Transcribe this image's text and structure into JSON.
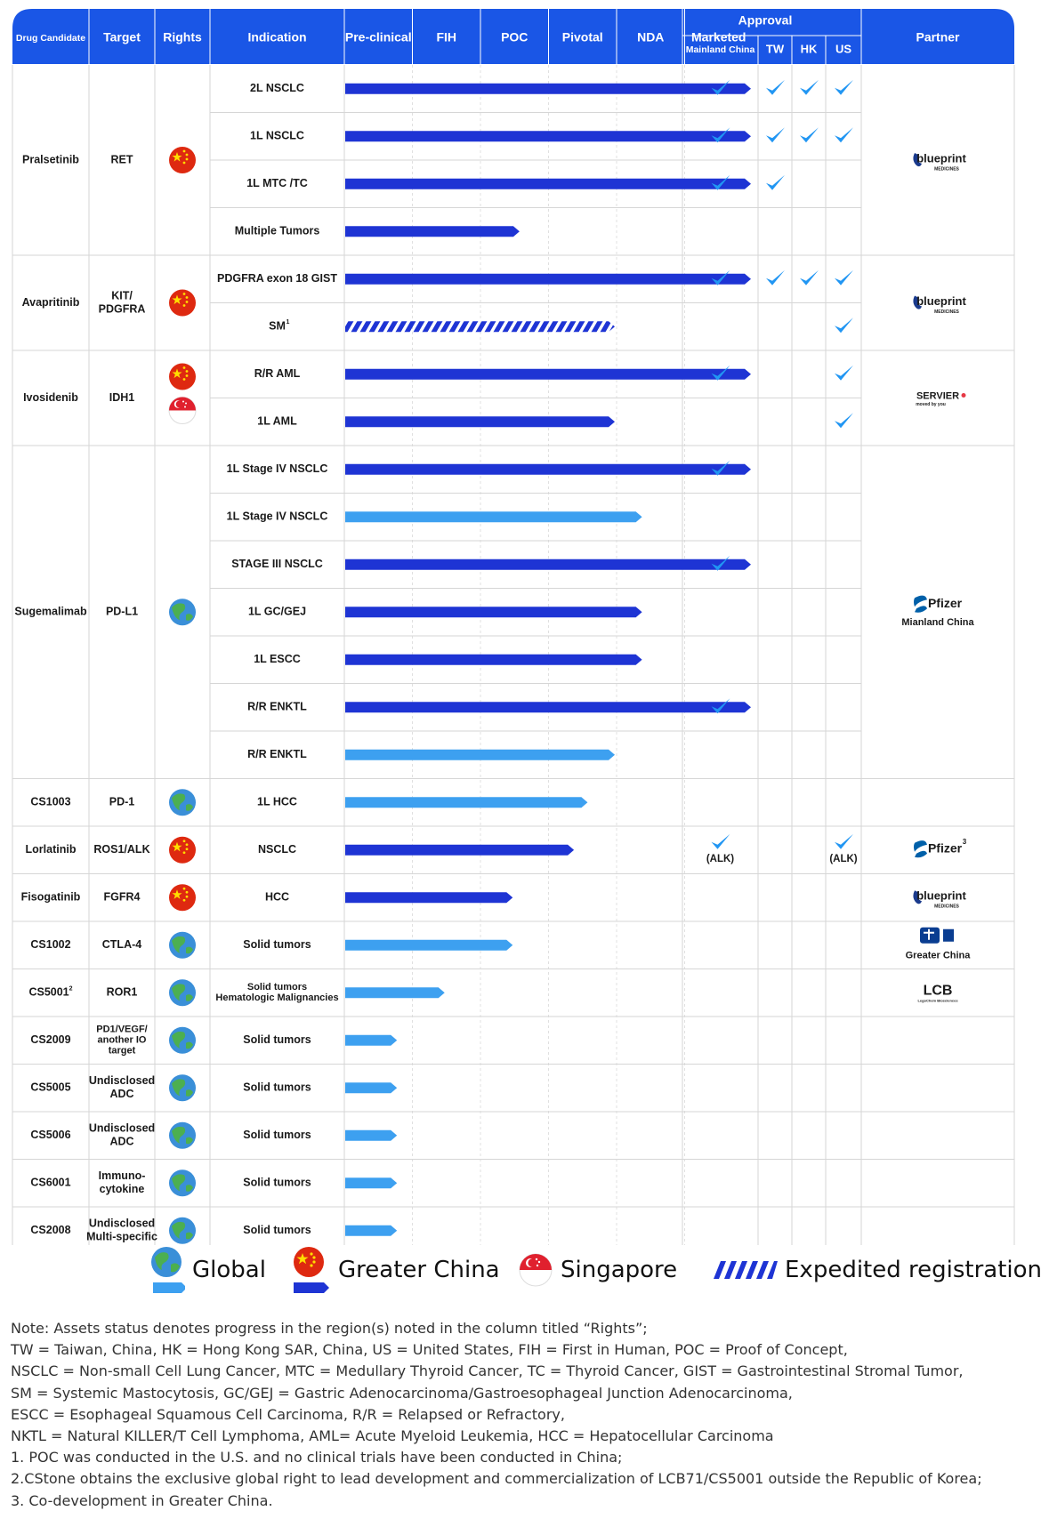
{
  "chart_data": {
    "type": "table",
    "header": {
      "drug": "Drug Candidate",
      "target": "Target",
      "rights": "Rights",
      "indication": "Indication",
      "stages": [
        "Pre-clinical",
        "FIH",
        "POC",
        "Pivotal",
        "NDA",
        "Marketed"
      ],
      "approval": "Approval",
      "regions": [
        "Mainland China",
        "TW",
        "HK",
        "US"
      ],
      "partner": "Partner"
    },
    "colors": {
      "header": "#1a56e6",
      "greater_china_bar": "#1e34d4",
      "global_bar": "#3da0f0",
      "check": "#2196f3",
      "china_flag": "#de2910",
      "singapore_flag": "#e0202e",
      "globe_ocean": "#3a8fd8",
      "globe_land": "#4caf50"
    },
    "drugs": [
      {
        "name": "Pralsetinib",
        "target": "RET",
        "rights": [
          "china"
        ],
        "partner": {
          "logo": "blueprint",
          "note": ""
        },
        "indications": [
          {
            "name": "2L NSCLC",
            "stage": 6.0,
            "bar": "greater_china",
            "approvals": [
              "",
              "",
              "",
              ""
            ]
          },
          {
            "name": "1L NSCLC",
            "stage": 6.0,
            "bar": "greater_china",
            "approvals": [
              "",
              "",
              "",
              ""
            ]
          },
          {
            "name": "1L MTC /TC",
            "stage": 6.0,
            "bar": "greater_china",
            "approvals": [
              "",
              "",
              null,
              null
            ]
          },
          {
            "name": "Multiple Tumors",
            "stage": 2.6,
            "bar": "greater_china",
            "approvals": [
              null,
              null,
              null,
              null
            ]
          }
        ]
      },
      {
        "name": "Avapritinib",
        "target": "KIT/\nPDGFRA",
        "rights": [
          "china"
        ],
        "partner": {
          "logo": "blueprint",
          "note": ""
        },
        "indications": [
          {
            "name": "PDGFRA exon 18 GIST",
            "stage": 6.0,
            "bar": "greater_china",
            "approvals": [
              "",
              "",
              "",
              ""
            ]
          },
          {
            "name": "SM",
            "sup": "1",
            "stage": 4.0,
            "bar": "expedited",
            "approvals": [
              null,
              null,
              null,
              ""
            ]
          }
        ]
      },
      {
        "name": "Ivosidenib",
        "target": "IDH1",
        "rights": [
          "china",
          "singapore"
        ],
        "partner": {
          "logo": "servier",
          "note": ""
        },
        "indications": [
          {
            "name": "R/R AML",
            "stage": 6.0,
            "bar": "greater_china",
            "approvals": [
              "",
              null,
              null,
              ""
            ]
          },
          {
            "name": "1L AML",
            "stage": 4.0,
            "bar": "greater_china",
            "approvals": [
              null,
              null,
              null,
              ""
            ]
          }
        ]
      },
      {
        "name": "Sugemalimab",
        "target": "PD-L1",
        "rights": [
          "global"
        ],
        "partner": {
          "logo": "pfizer",
          "note": "Mianland China"
        },
        "indications": [
          {
            "name": "1L Stage IV NSCLC",
            "stage": 6.0,
            "bar": "greater_china",
            "approvals": [
              "",
              null,
              null,
              null
            ]
          },
          {
            "name": "1L Stage IV NSCLC",
            "stage": 4.4,
            "bar": "global",
            "approvals": [
              null,
              null,
              null,
              null
            ]
          },
          {
            "name": "STAGE III NSCLC",
            "stage": 6.0,
            "bar": "greater_china",
            "approvals": [
              "",
              null,
              null,
              null
            ]
          },
          {
            "name": "1L GC/GEJ",
            "stage": 4.4,
            "bar": "greater_china",
            "approvals": [
              null,
              null,
              null,
              null
            ]
          },
          {
            "name": "1L ESCC",
            "stage": 4.4,
            "bar": "greater_china",
            "approvals": [
              null,
              null,
              null,
              null
            ]
          },
          {
            "name": "R/R ENKTL",
            "stage": 6.0,
            "bar": "greater_china",
            "approvals": [
              "",
              null,
              null,
              null
            ]
          },
          {
            "name": "R/R ENKTL",
            "stage": 4.0,
            "bar": "global",
            "approvals": [
              null,
              null,
              null,
              null
            ]
          }
        ]
      },
      {
        "name": "CS1003",
        "target": "PD-1",
        "rights": [
          "global"
        ],
        "partner": {
          "logo": "",
          "note": ""
        },
        "indications": [
          {
            "name": "1L HCC",
            "stage": 3.6,
            "bar": "global",
            "approvals": [
              null,
              null,
              null,
              null
            ]
          }
        ]
      },
      {
        "name": "Lorlatinib",
        "target": "ROS1/ALK",
        "rights": [
          "china"
        ],
        "partner": {
          "logo": "pfizer",
          "note": "",
          "sup": "3"
        },
        "indications": [
          {
            "name": "NSCLC",
            "stage": 3.4,
            "bar": "greater_china",
            "approvals": [
              "(ALK)",
              null,
              null,
              "(ALK)"
            ]
          }
        ]
      },
      {
        "name": "Fisogatinib",
        "target": "FGFR4",
        "rights": [
          "china"
        ],
        "partner": {
          "logo": "blueprint",
          "note": ""
        },
        "indications": [
          {
            "name": "HCC",
            "stage": 2.5,
            "bar": "greater_china",
            "approvals": [
              null,
              null,
              null,
              null
            ]
          }
        ]
      },
      {
        "name": "CS1002",
        "target": "CTLA-4",
        "rights": [
          "global"
        ],
        "partner": {
          "logo": "hengrui",
          "note": "Greater China"
        },
        "indications": [
          {
            "name": "Solid tumors",
            "stage": 2.5,
            "bar": "global",
            "approvals": [
              null,
              null,
              null,
              null
            ]
          }
        ]
      },
      {
        "name": "CS5001",
        "sup": "2",
        "target": "ROR1",
        "rights": [
          "global"
        ],
        "partner": {
          "logo": "lcb",
          "note": ""
        },
        "indications": [
          {
            "name": "Solid tumors\nHematologic Malignancies",
            "stage": 1.5,
            "bar": "global",
            "approvals": [
              null,
              null,
              null,
              null
            ]
          }
        ]
      },
      {
        "name": "CS2009",
        "target": "PD1/VEGF/\nanother IO\ntarget",
        "rights": [
          "global"
        ],
        "partner": {
          "logo": "",
          "note": ""
        },
        "indications": [
          {
            "name": "Solid tumors",
            "stage": 0.8,
            "bar": "global",
            "approvals": [
              null,
              null,
              null,
              null
            ]
          }
        ]
      },
      {
        "name": "CS5005",
        "target": "Undisclosed\nADC",
        "rights": [
          "global"
        ],
        "partner": {
          "logo": "",
          "note": ""
        },
        "indications": [
          {
            "name": "Solid tumors",
            "stage": 0.8,
            "bar": "global",
            "approvals": [
              null,
              null,
              null,
              null
            ]
          }
        ]
      },
      {
        "name": "CS5006",
        "target": "Undisclosed\nADC",
        "rights": [
          "global"
        ],
        "partner": {
          "logo": "",
          "note": ""
        },
        "indications": [
          {
            "name": "Solid tumors",
            "stage": 0.8,
            "bar": "global",
            "approvals": [
              null,
              null,
              null,
              null
            ]
          }
        ]
      },
      {
        "name": "CS6001",
        "target": "Immuno-\ncytokine",
        "rights": [
          "global"
        ],
        "partner": {
          "logo": "",
          "note": ""
        },
        "indications": [
          {
            "name": "Solid tumors",
            "stage": 0.8,
            "bar": "global",
            "approvals": [
              null,
              null,
              null,
              null
            ]
          }
        ]
      },
      {
        "name": "CS2008",
        "target": "Undisclosed\nMulti-specific",
        "rights": [
          "global"
        ],
        "partner": {
          "logo": "",
          "note": ""
        },
        "indications": [
          {
            "name": "Solid tumors",
            "stage": 0.8,
            "bar": "global",
            "approvals": [
              null,
              null,
              null,
              null
            ]
          }
        ]
      }
    ],
    "logos": {
      "blueprint": "blueprint",
      "blueprint_sub": "MEDICINES",
      "servier": "SERVIER",
      "servier_sub": "moved by you",
      "pfizer": "Pfizer",
      "lcb": "LCB",
      "lcb_sub": "LegoChem Biosciences"
    }
  },
  "legend": {
    "global": "Global",
    "greater_china": "Greater China",
    "singapore": "Singapore",
    "expedited": "Expedited registration"
  },
  "notes": [
    "Note: Assets status denotes progress in the region(s) noted in the column titled “Rights”;",
    "TW = Taiwan, China, HK = Hong Kong SAR, China, US = United States, FIH = First in Human, POC = Proof of Concept,",
    "NSCLC = Non-small Cell Lung Cancer, MTC = Medullary Thyroid Cancer, TC = Thyroid Cancer, GIST = Gastrointestinal Stromal Tumor,",
    "SM = Systemic Mastocytosis, GC/GEJ = Gastric Adenocarcinoma/Gastroesophageal Junction Adenocarcinoma,",
    "ESCC = Esophageal Squamous Cell Carcinoma, R/R = Relapsed or Refractory,",
    "NKTL = Natural KILLER/T Cell Lymphoma, AML= Acute Myeloid Leukemia, HCC = Hepatocellular Carcinoma",
    "1. POC was conducted in the U.S. and no clinical trials have been conducted in China;",
    "2.CStone obtains the exclusive global right to lead development and commercialization of LCB71/CS5001 outside the Republic of Korea;",
    "3. Co-development in Greater China."
  ]
}
